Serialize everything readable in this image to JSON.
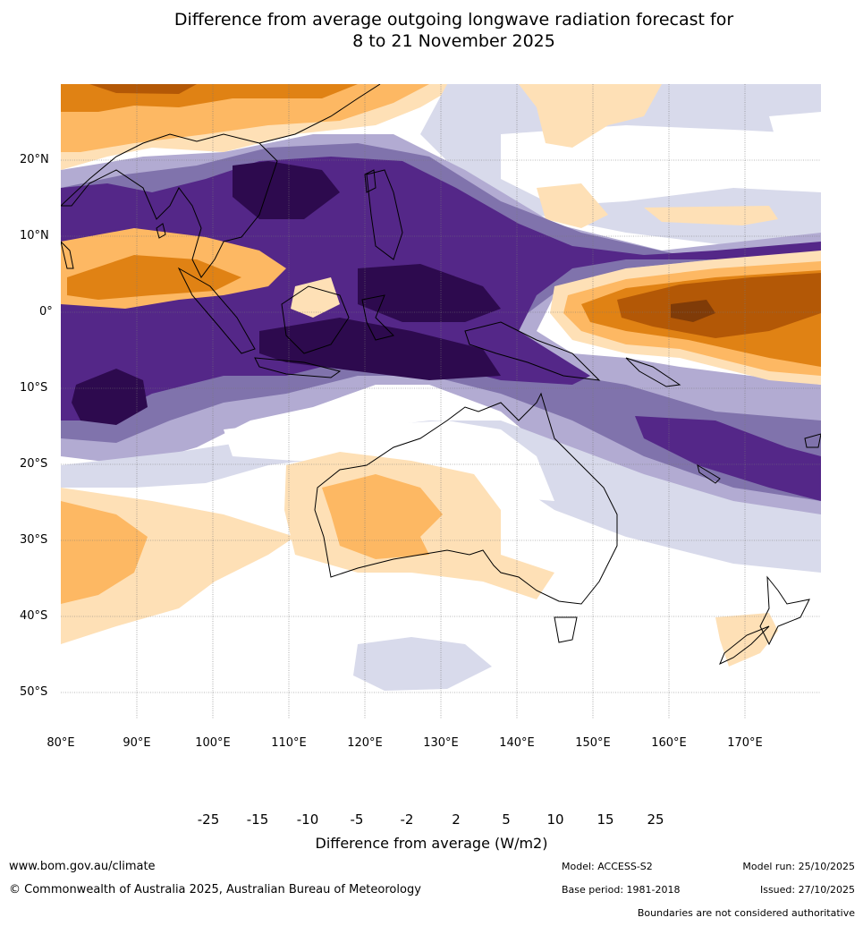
{
  "title": {
    "line1": "Difference from average outgoing longwave radiation forecast for",
    "line2": "8 to 21 November 2025"
  },
  "map": {
    "lat_labels": [
      "20°N",
      "10°N",
      "0°",
      "10°S",
      "20°S",
      "30°S",
      "40°S",
      "50°S"
    ],
    "lon_labels": [
      "80°E",
      "90°E",
      "100°E",
      "110°E",
      "120°E",
      "130°E",
      "140°E",
      "150°E",
      "160°E",
      "170°E"
    ],
    "lat_range": [
      -55,
      30
    ],
    "lon_range": [
      80,
      180
    ]
  },
  "colorbar": {
    "tick_labels": [
      "-25",
      "-15",
      "-10",
      "-5",
      "-2",
      "2",
      "5",
      "10",
      "15",
      "25"
    ],
    "colors": [
      "#2d0a4e",
      "#542788",
      "#8073ac",
      "#b2abd2",
      "#d8daeb",
      "#ffffff",
      "#fee0b6",
      "#fdb863",
      "#e08214",
      "#b35806",
      "#7f3b08"
    ],
    "title": "Difference from average (W/m2)"
  },
  "footer": {
    "url": "www.bom.gov.au/climate",
    "copyright": "© Commonwealth of Australia 2025, Australian Bureau of Meteorology",
    "model": "Model: ACCESS-S2",
    "base_period": "Base period: 1981-2018",
    "model_run": "Model run: 25/10/2025",
    "issued": "Issued: 27/10/2025",
    "disclaimer": "Boundaries are not considered authoritative"
  }
}
